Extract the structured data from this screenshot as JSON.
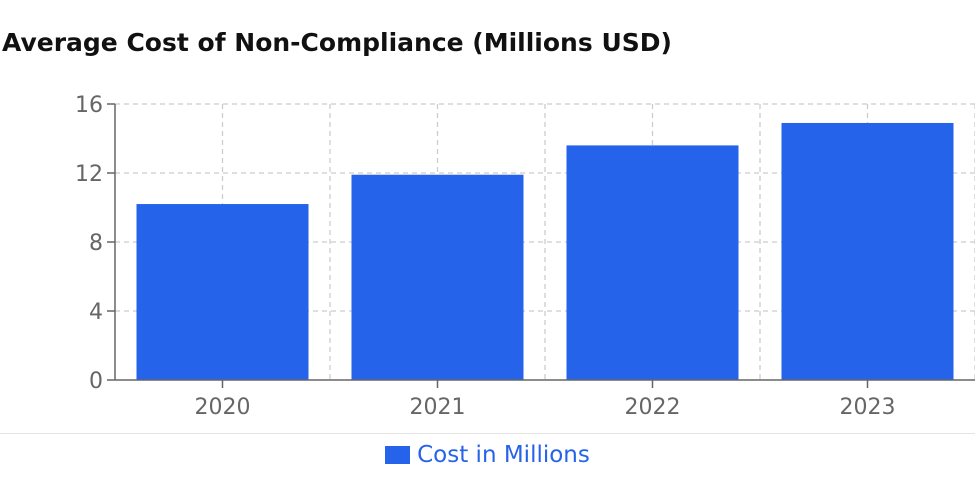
{
  "chart_data": {
    "type": "bar",
    "title": "Average Cost of Non-Compliance (Millions USD)",
    "categories": [
      "2020",
      "2021",
      "2022",
      "2023"
    ],
    "series": [
      {
        "name": "Cost in Millions",
        "values": [
          10.2,
          11.9,
          13.6,
          14.9
        ]
      }
    ],
    "ylim": [
      0,
      16
    ],
    "yticks": [
      0,
      4,
      8,
      12,
      16
    ],
    "grid": true,
    "legend_position": "bottom",
    "colors": {
      "bar": "#2563eb",
      "grid": "#cccccc",
      "axis": "#666666",
      "legend_text": "#2563eb"
    }
  }
}
